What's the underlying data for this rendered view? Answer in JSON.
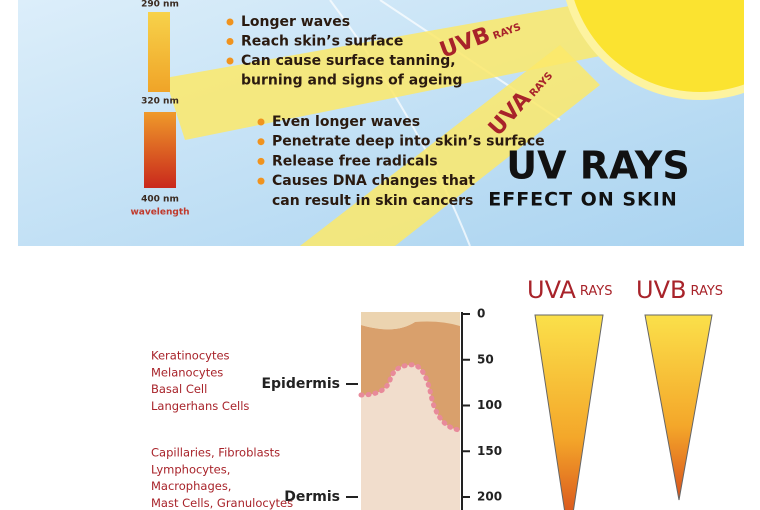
{
  "top_panel": {
    "wavelength_labels": [
      "290 nm",
      "320 nm",
      "400 nm"
    ],
    "wavelength_caption": "wavelength",
    "uvb": {
      "label": "UVB",
      "suffix": "RAYS",
      "bullets": [
        [
          "Longer waves"
        ],
        [
          "Reach skin’s surface"
        ],
        [
          "Can cause surface tanning,",
          "burning and signs of ageing"
        ]
      ]
    },
    "uva": {
      "label": "UVA",
      "suffix": "RAYS",
      "bullets": [
        [
          "Even longer waves"
        ],
        [
          "Penetrate deep into skin’s surface"
        ],
        [
          "Release free radicals"
        ],
        [
          "Causes DNA changes that",
          "can result in skin cancers"
        ]
      ]
    },
    "title": "UV RAYS",
    "subtitle": "EFFECT ON SKIN"
  },
  "bottom_panel": {
    "cell_groups": [
      [
        "Keratinocytes",
        "Melanocytes",
        "Basal Cell",
        "Langerhans Cells"
      ],
      [
        "Capillaries, Fibroblasts",
        "Lymphocytes,",
        "Macrophages,",
        "Mast Cells, Granulocytes"
      ]
    ],
    "layers": [
      "Epidermis",
      "Dermis"
    ],
    "depth_ticks": [
      0,
      50,
      100,
      150,
      200
    ],
    "uva": {
      "label": "UVA",
      "suffix": "RAYS"
    },
    "uvb": {
      "label": "UVB",
      "suffix": "RAYS"
    }
  }
}
